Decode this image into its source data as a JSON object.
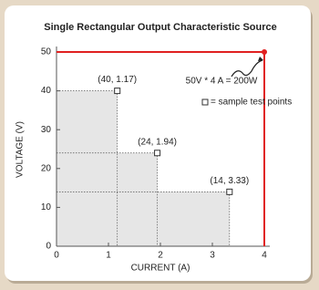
{
  "chart_data": {
    "type": "scatter",
    "title": "Single Rectangular Output Characteristic Source",
    "x_label": "CURRENT (A)",
    "y_label": "VOLTAGE (V)",
    "annotation": "50V * 4 A = 200W",
    "series": [
      {
        "name": "= sample test points",
        "color": "#333333",
        "x": [
          1.17,
          1.94,
          3.33
        ],
        "values": [
          40,
          24,
          14
        ],
        "value_labels": [
          "(40, 1.17)",
          "(24, 1.94)",
          "(14, 3.33)"
        ]
      }
    ],
    "limit": {
      "x": [
        0,
        4,
        4
      ],
      "values": [
        50,
        50,
        0
      ],
      "color": "#e02020"
    },
    "shade_color": "#e6e6e6",
    "xlim": [
      0,
      4
    ],
    "ylim": [
      0,
      50
    ],
    "xticks": [
      0,
      1,
      2,
      3,
      4
    ],
    "yticks": [
      0,
      10,
      20,
      30,
      40,
      50
    ]
  }
}
